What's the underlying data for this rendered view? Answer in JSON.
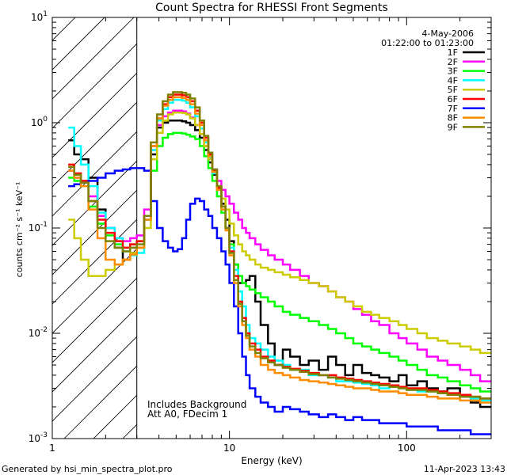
{
  "chart_data": {
    "type": "line",
    "title": "Count Spectra for RHESSI Front Segments",
    "xlabel": "Energy (keV)",
    "ylabel": "counts cm⁻² s⁻¹ keV⁻¹",
    "xscale": "log",
    "yscale": "log",
    "xlim": [
      1,
      300
    ],
    "ylim": [
      0.001,
      10
    ],
    "xticks": [
      {
        "value": 1,
        "label": "1"
      },
      {
        "value": 10,
        "label": "10"
      },
      {
        "value": 100,
        "label": "100"
      }
    ],
    "yticks": [
      {
        "exp": 1,
        "label": "10",
        "sup": "1"
      },
      {
        "exp": 0,
        "label": "10",
        "sup": "0"
      },
      {
        "exp": -1,
        "label": "10",
        "sup": "-1"
      },
      {
        "exp": -2,
        "label": "10",
        "sup": "-2"
      },
      {
        "exp": -3,
        "label": "10",
        "sup": "-3"
      }
    ],
    "hatched_region_xmax": 3,
    "date": "4-May-2006",
    "time_range": "01:22:00 to 01:23:00",
    "annotations": [
      "Includes Background",
      "Att A0, FDecim 1"
    ],
    "legend_position": "top-right",
    "x_edges": [
      1.23,
      1.33,
      1.45,
      1.6,
      1.8,
      2.0,
      2.25,
      2.5,
      2.75,
      3.0,
      3.3,
      3.6,
      3.9,
      4.2,
      4.5,
      4.8,
      5.1,
      5.4,
      5.7,
      6.0,
      6.4,
      6.8,
      7.2,
      7.6,
      8.0,
      8.5,
      9.0,
      9.5,
      10.0,
      10.6,
      11.2,
      11.8,
      12.4,
      13.0,
      14.0,
      15.0,
      16.5,
      18.0,
      20.0,
      22.0,
      25.0,
      28.0,
      32.0,
      36.0,
      40.0,
      45.0,
      50.0,
      56.0,
      63.0,
      70.0,
      80.0,
      90.0,
      100.0,
      115.0,
      130.0,
      150.0,
      170.0,
      200.0,
      230.0,
      260.0,
      300.0
    ],
    "series": [
      {
        "name": "1F",
        "color": "#000000",
        "values": [
          0.68,
          0.5,
          0.45,
          0.3,
          0.15,
          0.1,
          0.065,
          0.05,
          0.058,
          0.065,
          0.12,
          0.5,
          0.9,
          1.0,
          1.05,
          1.05,
          1.05,
          1.03,
          1.0,
          0.95,
          0.85,
          0.72,
          0.55,
          0.42,
          0.32,
          0.24,
          0.17,
          0.12,
          0.075,
          0.045,
          0.03,
          0.03,
          0.032,
          0.035,
          0.02,
          0.012,
          0.008,
          0.005,
          0.007,
          0.006,
          0.005,
          0.0055,
          0.0045,
          0.006,
          0.005,
          0.004,
          0.005,
          0.0042,
          0.004,
          0.0038,
          0.0035,
          0.004,
          0.0032,
          0.0035,
          0.003,
          0.0028,
          0.003,
          0.0025,
          0.0022,
          0.002
        ]
      },
      {
        "name": "2F",
        "color": "#ff00ff",
        "values": [
          0.35,
          0.3,
          0.28,
          0.2,
          0.13,
          0.1,
          0.08,
          0.075,
          0.08,
          0.085,
          0.15,
          0.55,
          0.95,
          1.15,
          1.25,
          1.3,
          1.3,
          1.28,
          1.22,
          1.12,
          0.95,
          0.78,
          0.6,
          0.46,
          0.36,
          0.28,
          0.23,
          0.2,
          0.17,
          0.14,
          0.12,
          0.1,
          0.09,
          0.08,
          0.07,
          0.062,
          0.055,
          0.05,
          0.045,
          0.04,
          0.035,
          0.03,
          0.028,
          0.025,
          0.022,
          0.02,
          0.017,
          0.015,
          0.013,
          0.012,
          0.01,
          0.009,
          0.008,
          0.007,
          0.006,
          0.0055,
          0.005,
          0.0045,
          0.004,
          0.0035
        ]
      },
      {
        "name": "3F",
        "color": "#00ff00",
        "values": [
          0.3,
          0.28,
          0.25,
          0.16,
          0.11,
          0.085,
          0.07,
          0.065,
          0.07,
          0.075,
          0.12,
          0.35,
          0.6,
          0.72,
          0.78,
          0.8,
          0.8,
          0.79,
          0.77,
          0.74,
          0.7,
          0.6,
          0.48,
          0.37,
          0.28,
          0.2,
          0.14,
          0.1,
          0.07,
          0.045,
          0.035,
          0.03,
          0.028,
          0.026,
          0.024,
          0.022,
          0.02,
          0.018,
          0.016,
          0.015,
          0.014,
          0.013,
          0.012,
          0.011,
          0.01,
          0.009,
          0.008,
          0.0075,
          0.007,
          0.0065,
          0.006,
          0.0055,
          0.005,
          0.0045,
          0.004,
          0.0038,
          0.0035,
          0.0032,
          0.003,
          0.0028
        ]
      },
      {
        "name": "4F",
        "color": "#00ffff",
        "values": [
          0.9,
          0.6,
          0.4,
          0.25,
          0.14,
          0.1,
          0.08,
          0.06,
          0.055,
          0.058,
          0.12,
          0.55,
          1.05,
          1.35,
          1.55,
          1.65,
          1.65,
          1.62,
          1.55,
          1.4,
          1.15,
          0.88,
          0.65,
          0.46,
          0.33,
          0.23,
          0.15,
          0.1,
          0.065,
          0.04,
          0.025,
          0.018,
          0.012,
          0.009,
          0.008,
          0.007,
          0.006,
          0.0055,
          0.005,
          0.0045,
          0.0045,
          0.004,
          0.004,
          0.0038,
          0.0035,
          0.0035,
          0.0034,
          0.0033,
          0.0032,
          0.003,
          0.0031,
          0.003,
          0.0029,
          0.0028,
          0.0028,
          0.0027,
          0.0026,
          0.0025,
          0.0024,
          0.0023
        ]
      },
      {
        "name": "5F",
        "color": "#cccc00",
        "values": [
          0.12,
          0.08,
          0.05,
          0.035,
          0.035,
          0.04,
          0.045,
          0.05,
          0.058,
          0.065,
          0.1,
          0.45,
          0.8,
          1.05,
          1.2,
          1.25,
          1.25,
          1.24,
          1.2,
          1.1,
          0.95,
          0.78,
          0.6,
          0.45,
          0.34,
          0.25,
          0.19,
          0.15,
          0.11,
          0.085,
          0.07,
          0.06,
          0.055,
          0.05,
          0.045,
          0.042,
          0.04,
          0.038,
          0.036,
          0.034,
          0.032,
          0.03,
          0.028,
          0.025,
          0.022,
          0.02,
          0.018,
          0.016,
          0.015,
          0.014,
          0.013,
          0.012,
          0.011,
          0.01,
          0.009,
          0.0085,
          0.008,
          0.0075,
          0.007,
          0.0065
        ]
      },
      {
        "name": "6F",
        "color": "#ff0000",
        "values": [
          0.4,
          0.33,
          0.28,
          0.18,
          0.12,
          0.09,
          0.075,
          0.065,
          0.07,
          0.075,
          0.13,
          0.6,
          1.1,
          1.5,
          1.75,
          1.85,
          1.85,
          1.82,
          1.75,
          1.6,
          1.3,
          1.0,
          0.72,
          0.5,
          0.35,
          0.24,
          0.16,
          0.1,
          0.06,
          0.035,
          0.02,
          0.014,
          0.01,
          0.008,
          0.007,
          0.006,
          0.0055,
          0.005,
          0.0048,
          0.0046,
          0.0044,
          0.0042,
          0.004,
          0.004,
          0.0038,
          0.0037,
          0.0036,
          0.0035,
          0.0034,
          0.0033,
          0.0032,
          0.0031,
          0.003,
          0.003,
          0.0029,
          0.0028,
          0.0027,
          0.0026,
          0.0025,
          0.0024
        ]
      },
      {
        "name": "7F",
        "color": "#0000ff",
        "values": [
          0.25,
          0.26,
          0.27,
          0.28,
          0.3,
          0.33,
          0.35,
          0.36,
          0.37,
          0.37,
          0.35,
          0.18,
          0.1,
          0.075,
          0.065,
          0.06,
          0.063,
          0.08,
          0.12,
          0.17,
          0.19,
          0.18,
          0.15,
          0.13,
          0.1,
          0.08,
          0.06,
          0.045,
          0.03,
          0.018,
          0.01,
          0.006,
          0.004,
          0.003,
          0.0025,
          0.0022,
          0.002,
          0.0018,
          0.002,
          0.0019,
          0.0018,
          0.0017,
          0.0016,
          0.0017,
          0.0016,
          0.0015,
          0.0016,
          0.0015,
          0.0015,
          0.0014,
          0.0014,
          0.0014,
          0.0013,
          0.0013,
          0.0013,
          0.0012,
          0.0012,
          0.0012,
          0.0011,
          0.0011
        ]
      },
      {
        "name": "8F",
        "color": "#ff8c00",
        "values": [
          0.35,
          0.3,
          0.25,
          0.15,
          0.08,
          0.05,
          0.045,
          0.05,
          0.056,
          0.065,
          0.12,
          0.6,
          1.1,
          1.45,
          1.65,
          1.75,
          1.75,
          1.72,
          1.65,
          1.5,
          1.22,
          0.95,
          0.68,
          0.48,
          0.34,
          0.23,
          0.15,
          0.095,
          0.055,
          0.03,
          0.018,
          0.012,
          0.009,
          0.007,
          0.006,
          0.005,
          0.0045,
          0.0042,
          0.004,
          0.0038,
          0.0036,
          0.0035,
          0.0034,
          0.0033,
          0.0032,
          0.0031,
          0.003,
          0.003,
          0.0029,
          0.0028,
          0.0028,
          0.0027,
          0.0026,
          0.0026,
          0.0025,
          0.0024,
          0.0024,
          0.0023,
          0.0023,
          0.0022
        ]
      },
      {
        "name": "9F",
        "color": "#808000",
        "values": [
          0.38,
          0.32,
          0.27,
          0.18,
          0.1,
          0.075,
          0.065,
          0.06,
          0.065,
          0.07,
          0.13,
          0.65,
          1.2,
          1.6,
          1.85,
          1.95,
          1.95,
          1.92,
          1.85,
          1.7,
          1.4,
          1.05,
          0.75,
          0.52,
          0.36,
          0.25,
          0.16,
          0.1,
          0.058,
          0.032,
          0.019,
          0.013,
          0.0095,
          0.0075,
          0.0065,
          0.0058,
          0.0053,
          0.005,
          0.0047,
          0.0045,
          0.0043,
          0.0041,
          0.004,
          0.0038,
          0.0037,
          0.0036,
          0.0035,
          0.0034,
          0.0033,
          0.0032,
          0.0031,
          0.003,
          0.0029,
          0.0029,
          0.0028,
          0.0027,
          0.0026,
          0.0025,
          0.0025,
          0.0024
        ]
      }
    ]
  },
  "footer": {
    "generated_by": "Generated by hsi_min_spectra_plot.pro",
    "timestamp": "11-Apr-2023 13:43"
  }
}
